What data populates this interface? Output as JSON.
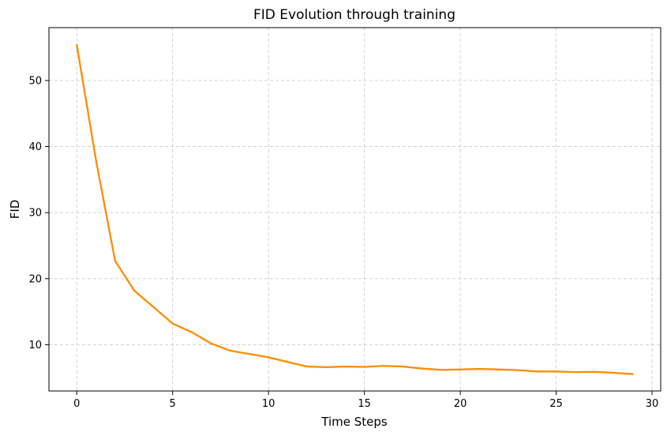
{
  "chart_data": {
    "type": "line",
    "title": "FID Evolution through training",
    "xlabel": "Time Steps",
    "ylabel": "FID",
    "xlim": [
      -1.45,
      30.45
    ],
    "ylim": [
      3.0,
      58.0
    ],
    "xticks": [
      0,
      5,
      10,
      15,
      20,
      25,
      30
    ],
    "yticks": [
      10,
      20,
      30,
      40,
      50
    ],
    "grid": true,
    "legend": "none",
    "series": [
      {
        "color": "#ff8c00",
        "x": [
          0,
          1,
          2,
          3,
          4,
          5,
          6,
          7,
          8,
          9,
          10,
          11,
          12,
          13,
          14,
          15,
          16,
          17,
          18,
          19,
          20,
          21,
          22,
          23,
          24,
          25,
          26,
          27,
          28,
          29
        ],
        "y": [
          55.4,
          38.0,
          22.7,
          18.2,
          15.7,
          13.2,
          11.9,
          10.2,
          9.1,
          8.6,
          8.1,
          7.4,
          6.7,
          6.6,
          6.7,
          6.65,
          6.8,
          6.7,
          6.4,
          6.2,
          6.25,
          6.35,
          6.25,
          6.15,
          5.95,
          5.95,
          5.85,
          5.9,
          5.75,
          5.55
        ]
      }
    ]
  }
}
